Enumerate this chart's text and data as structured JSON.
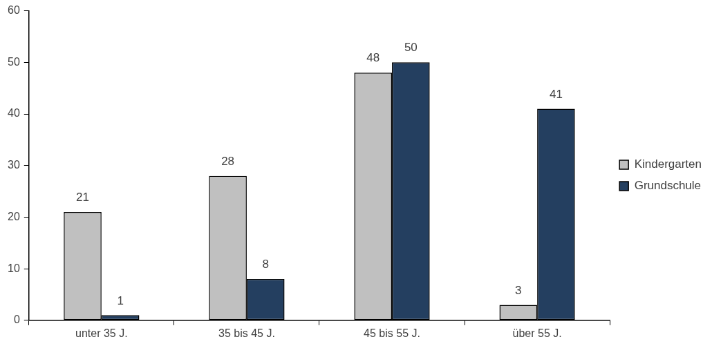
{
  "chart_data": {
    "type": "bar",
    "categories": [
      "unter 35 J.",
      "35 bis 45 J.",
      "45 bis 55 J.",
      "über 55 J."
    ],
    "series": [
      {
        "name": "Kindergarten",
        "color": "#c0c0c0",
        "values": [
          21,
          28,
          48,
          3
        ]
      },
      {
        "name": "Grundschule",
        "color": "#243f60",
        "values": [
          1,
          8,
          50,
          41
        ]
      }
    ],
    "ylim": [
      0,
      60
    ],
    "yticks": [
      0,
      10,
      20,
      30,
      40,
      50,
      60
    ],
    "legend": "right",
    "data_labels": true
  }
}
